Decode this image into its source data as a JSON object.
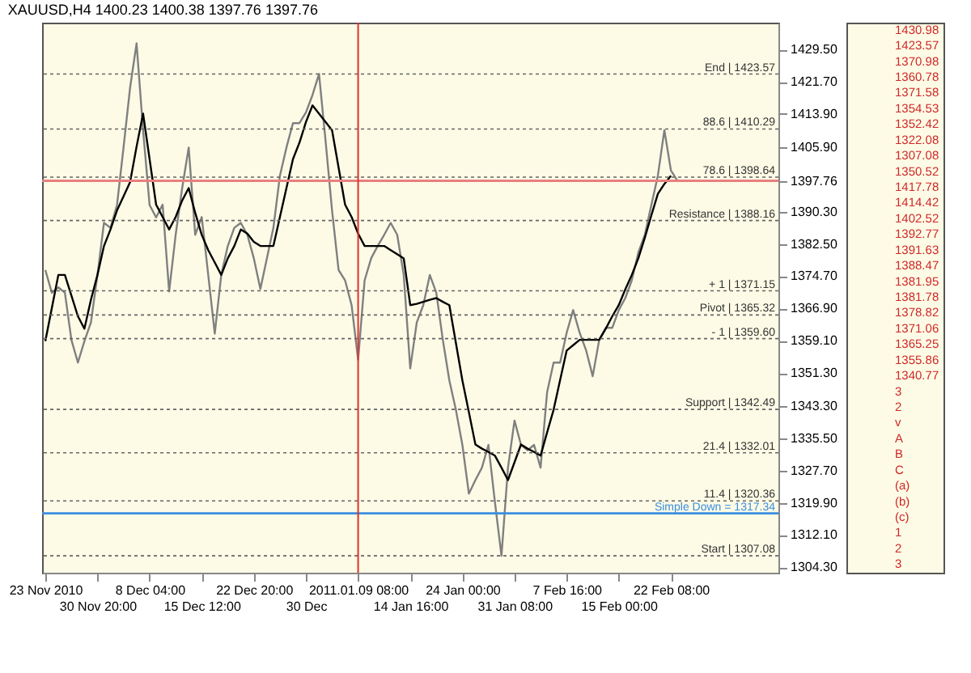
{
  "chart_data": {
    "type": "line",
    "title": "XAUUSD,H4 1400.23 1400.38 1397.76 1397.76",
    "categories": [
      "23 Nov 2010",
      null,
      null,
      null,
      null,
      null,
      null,
      null,
      "30 Nov 20:00",
      null,
      null,
      null,
      null,
      null,
      null,
      null,
      "8 Dec 04:00",
      null,
      null,
      null,
      null,
      null,
      null,
      null,
      "15 Dec 12:00",
      null,
      null,
      null,
      null,
      null,
      null,
      null,
      "22 Dec 20:00",
      null,
      null,
      null,
      null,
      null,
      null,
      null,
      "30 Dec",
      null,
      null,
      null,
      null,
      null,
      null,
      null,
      "2011.01.09 08:00",
      null,
      null,
      null,
      null,
      null,
      null,
      null,
      "14 Jan 16:00",
      null,
      null,
      null,
      null,
      null,
      null,
      null,
      "24 Jan 00:00",
      null,
      null,
      null,
      null,
      null,
      null,
      null,
      "31 Jan 08:00",
      null,
      null,
      null,
      null,
      null,
      null,
      null,
      "7 Feb 16:00",
      null,
      null,
      null,
      null,
      null,
      null,
      null,
      "15 Feb 00:00",
      null,
      null,
      null,
      null,
      null,
      null,
      null,
      "22 Feb 08:00",
      null,
      null,
      null,
      null,
      null,
      null,
      null,
      null,
      null,
      null,
      null,
      null,
      null,
      null,
      null,
      null
    ],
    "ylim": [
      1303,
      1436
    ],
    "yticks": [
      {
        "value": 1429.5,
        "label": "1429.50"
      },
      {
        "value": 1421.7,
        "label": "1421.70"
      },
      {
        "value": 1413.9,
        "label": "1413.90"
      },
      {
        "value": 1405.9,
        "label": "1405.90"
      },
      {
        "value": 1397.76,
        "label": "1397.76"
      },
      {
        "value": 1390.3,
        "label": "1390.30"
      },
      {
        "value": 1382.5,
        "label": "1382.50"
      },
      {
        "value": 1374.7,
        "label": "1374.70"
      },
      {
        "value": 1366.9,
        "label": "1366.90"
      },
      {
        "value": 1359.1,
        "label": "1359.10"
      },
      {
        "value": 1351.3,
        "label": "1351.30"
      },
      {
        "value": 1343.3,
        "label": "1343.30"
      },
      {
        "value": 1335.5,
        "label": "1335.50"
      },
      {
        "value": 1327.7,
        "label": "1327.70"
      },
      {
        "value": 1319.9,
        "label": "1319.90"
      },
      {
        "value": 1312.1,
        "label": "1312.10"
      },
      {
        "value": 1304.3,
        "label": "1304.30"
      }
    ],
    "series": [
      {
        "color": "#808080",
        "values": [
          1376.2,
          1370.7,
          1372,
          1370.7,
          1359.3,
          1353.8,
          1359,
          1363.5,
          1375,
          1387.6,
          1386.4,
          1391.9,
          1405.8,
          1420.2,
          1431,
          1410,
          1391.9,
          1388.9,
          1392,
          1371,
          1384.7,
          1396,
          1405.8,
          1384.7,
          1389,
          1375,
          1360.8,
          1375,
          1382,
          1386.4,
          1387.6,
          1384.7,
          1379,
          1371.6,
          1379,
          1386.4,
          1399,
          1405.8,
          1411.7,
          1411.7,
          1414.3,
          1418.5,
          1423.6,
          1407.5,
          1390.6,
          1376.2,
          1373.7,
          1367.7,
          1354.5,
          1373.7,
          1379,
          1382,
          1384.7,
          1387.6,
          1384.7,
          1375,
          1352.4,
          1363.5,
          1367.7,
          1375,
          1370.7,
          1359.3,
          1349.5,
          1342.4,
          1333.9,
          1322.1,
          1325.4,
          1328.4,
          1333.9,
          1320,
          1307.1,
          1328.4,
          1339.8,
          1333.9,
          1332.6,
          1333.9,
          1328.4,
          1346.6,
          1353.8,
          1353.8,
          1361,
          1366.5,
          1361,
          1356.7,
          1350.5,
          1359.3,
          1362.2,
          1362.2,
          1366.5,
          1369.4,
          1373.7,
          1380.4,
          1384.7,
          1391.9,
          1399,
          1410,
          1400.3,
          1397.8,
          null,
          null,
          null,
          null,
          null,
          null,
          null,
          null,
          null,
          null,
          null,
          null,
          null,
          null,
          null
        ]
      },
      {
        "color": "#000000",
        "values": [
          1359,
          1367,
          1375,
          1375,
          1370,
          1365,
          1362,
          1369,
          1375,
          1382,
          1386,
          1390.6,
          1394,
          1397.4,
          1406,
          1414,
          1403,
          1392,
          1389,
          1386,
          1389,
          1393,
          1396,
          1390,
          1384.7,
          1381,
          1378,
          1375,
          1379,
          1382,
          1386,
          1385,
          1383,
          1382,
          1382,
          1382,
          1389,
          1396,
          1403,
          1407,
          1412,
          1416,
          1414,
          1412,
          1410,
          1401,
          1392,
          1389,
          1385,
          1382,
          1382,
          1382,
          1382,
          1381,
          1380,
          1379,
          1367.7,
          1368,
          1368.5,
          1369,
          1369.4,
          1368.5,
          1367.7,
          1358.6,
          1349.5,
          1341.8,
          1334,
          1333,
          1332.2,
          1331.3,
          1328.4,
          1325.4,
          1329.7,
          1334,
          1333,
          1332.2,
          1331.3,
          1336.9,
          1342.4,
          1349.6,
          1356.7,
          1358,
          1359.3,
          1359.3,
          1359.3,
          1359.3,
          1362,
          1365,
          1367.7,
          1371.5,
          1375,
          1379,
          1384,
          1389.4,
          1394.6,
          1397,
          1399,
          null,
          null,
          null,
          null,
          null,
          null,
          null,
          null,
          null,
          null,
          null,
          null,
          null,
          null,
          null,
          null
        ]
      }
    ],
    "ref_lines": [
      {
        "axis": "y",
        "value": 1397.76,
        "color": "#e88080",
        "line_style": "solid"
      },
      {
        "axis": "y",
        "value": 1317.34,
        "label": "Simple Down = 1317.34",
        "color": "#3a8ee0",
        "line_style": "solid"
      },
      {
        "axis": "y",
        "value": 1423.57,
        "label": "End | 1423.57",
        "color": "#666666",
        "line_style": "dotted"
      },
      {
        "axis": "y",
        "value": 1410.29,
        "label": "88.6 | 1410.29",
        "color": "#666666",
        "line_style": "dotted"
      },
      {
        "axis": "y",
        "value": 1398.64,
        "label": "78.6 | 1398.64",
        "color": "#666666",
        "line_style": "dotted"
      },
      {
        "axis": "y",
        "value": 1388.16,
        "label": "Resistance | 1388.16",
        "color": "#666666",
        "line_style": "dotted"
      },
      {
        "axis": "y",
        "value": 1371.15,
        "label": "+ 1 | 1371.15",
        "color": "#666666",
        "line_style": "dotted"
      },
      {
        "axis": "y",
        "value": 1365.32,
        "label": "Pivot | 1365.32",
        "color": "#666666",
        "line_style": "dotted"
      },
      {
        "axis": "y",
        "value": 1359.6,
        "label": "- 1 | 1359.60",
        "color": "#666666",
        "line_style": "dotted"
      },
      {
        "axis": "y",
        "value": 1342.49,
        "label": "Support | 1342.49",
        "color": "#666666",
        "line_style": "dotted"
      },
      {
        "axis": "y",
        "value": 1332.01,
        "label": "21.4 | 1332.01",
        "color": "#666666",
        "line_style": "dotted"
      },
      {
        "axis": "y",
        "value": 1320.36,
        "label": "11.4 | 1320.36",
        "color": "#666666",
        "line_style": "dotted"
      },
      {
        "axis": "y",
        "value": 1307.08,
        "label": "Start | 1307.08",
        "color": "#666666",
        "line_style": "dotted"
      },
      {
        "axis": "x",
        "value": "2011.01.09 08:00",
        "color": "#e03030",
        "line_style": "solid"
      }
    ],
    "annotations": [
      "1430.98",
      "1423.57",
      "1370.98",
      "1360.78",
      "1371.58",
      "1354.53",
      "1352.42",
      "1322.08",
      "1307.08",
      "1350.52",
      "1417.78",
      "1414.42",
      "1402.52",
      "1392.77",
      "1391.63",
      "1388.47",
      "1381.95",
      "1381.78",
      "1378.82",
      "1371.06",
      "1365.25",
      "1355.86",
      "1340.77",
      "3",
      "2",
      "v",
      "A",
      "B",
      "C",
      "(a)",
      "(b)",
      "(c)",
      "1",
      "2",
      "3"
    ]
  }
}
